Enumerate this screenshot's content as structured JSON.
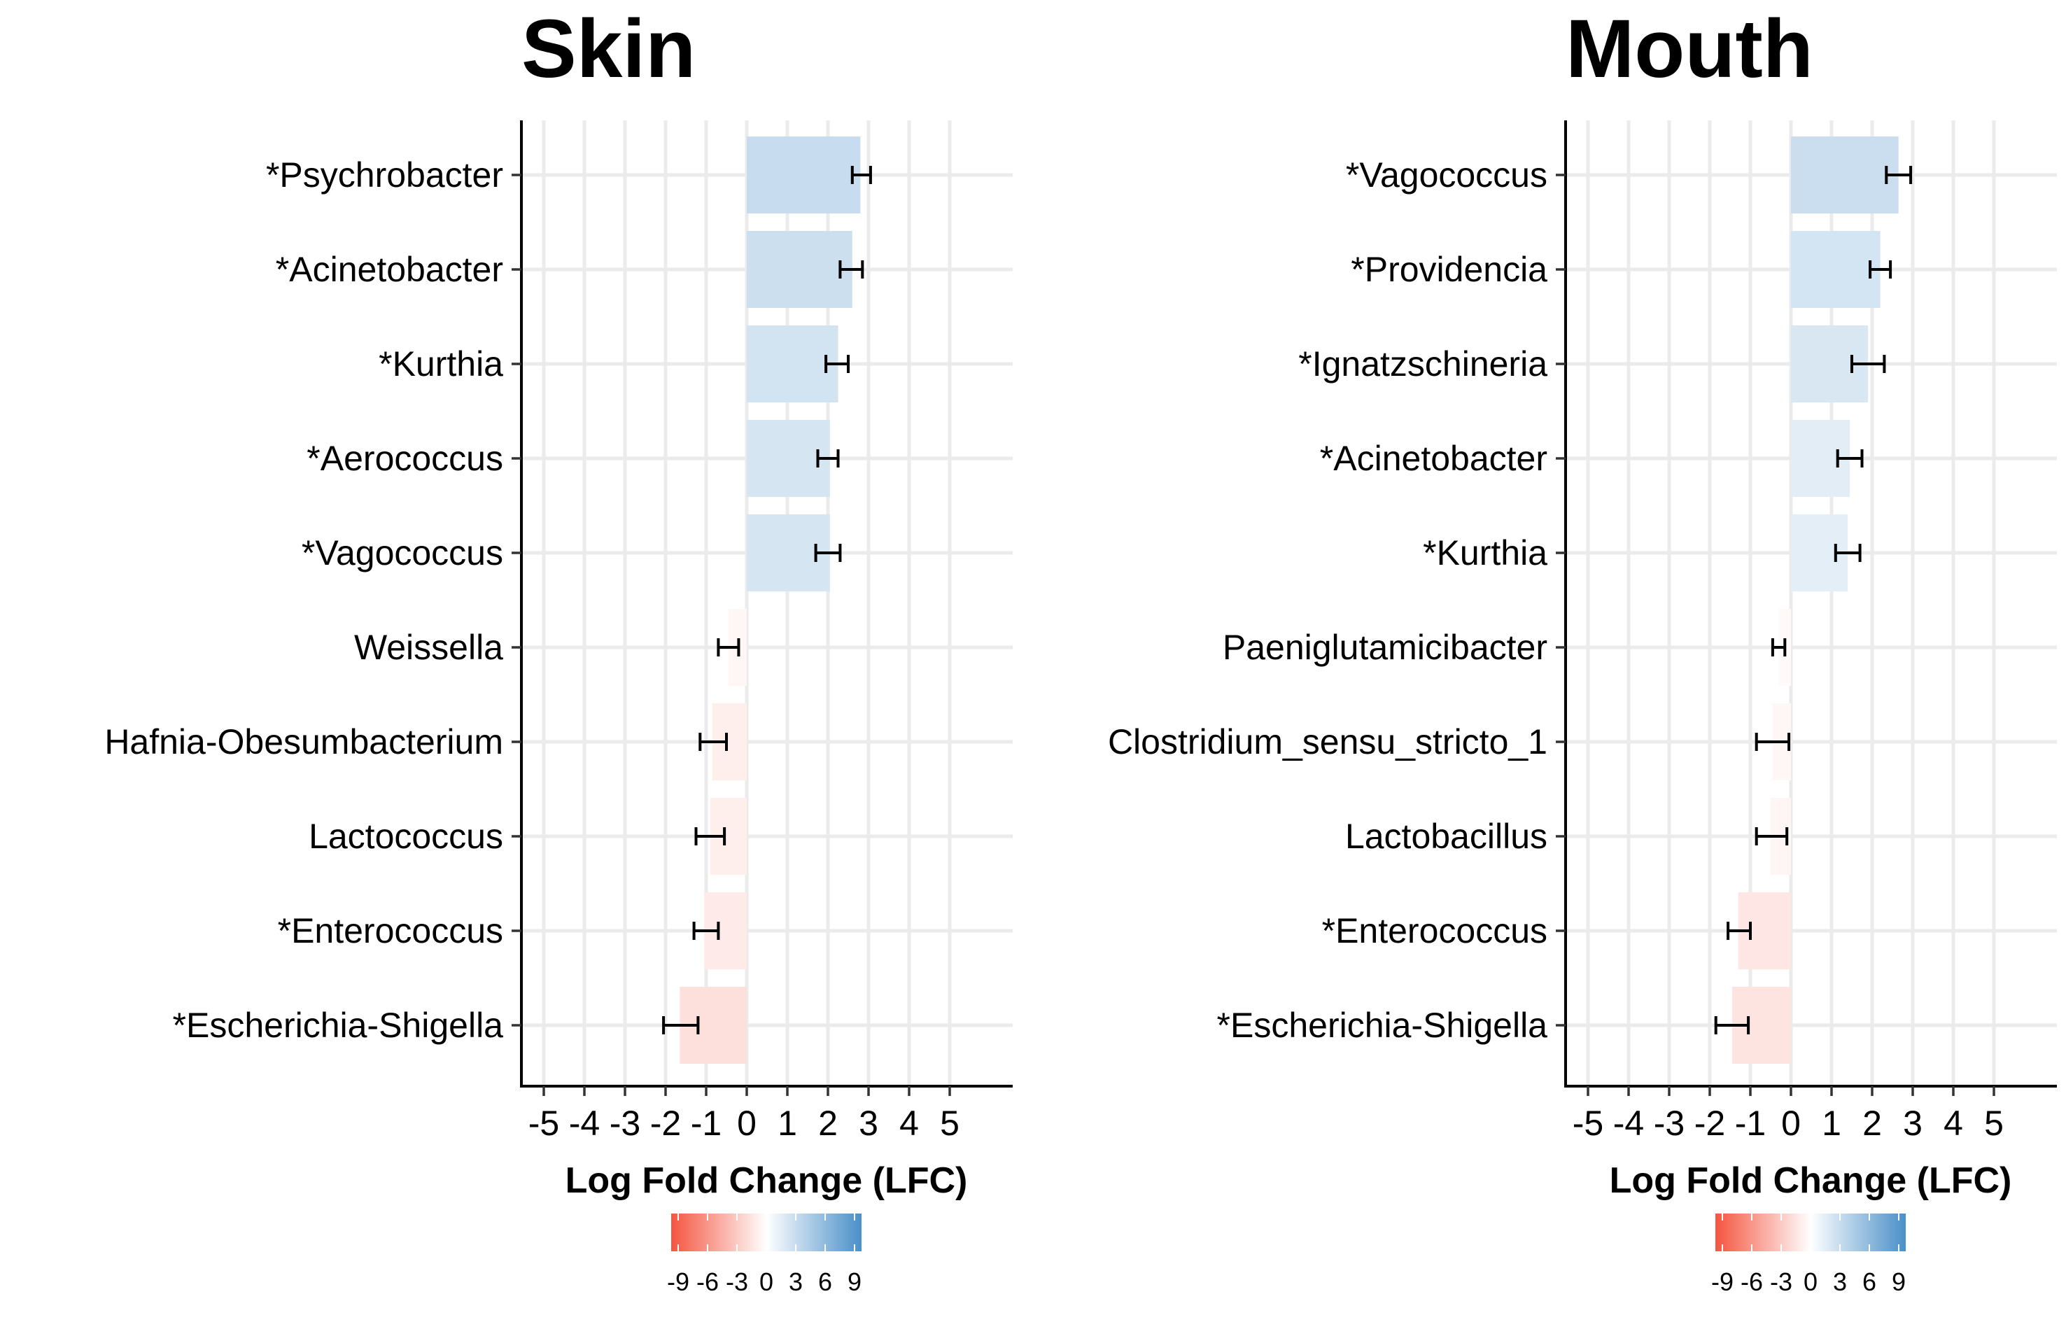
{
  "chart_data": [
    {
      "type": "bar",
      "orientation": "horizontal",
      "title": "Skin",
      "xlabel": "Log Fold Change (LFC)",
      "ylabel": "",
      "xlim": [
        -5.5,
        6.6
      ],
      "xticks": [
        -5,
        -4,
        -3,
        -2,
        -1,
        0,
        1,
        2,
        3,
        4,
        5
      ],
      "grid": true,
      "categories": [
        "*Psychrobacter",
        "*Acinetobacter",
        "*Kurthia",
        "*Aerococcus",
        "*Vagococcus",
        "Weissella",
        "Hafnia-Obesumbacterium",
        "Lactococcus",
        "*Enterococcus",
        "*Escherichia-Shigella"
      ],
      "values": [
        2.8,
        2.6,
        2.25,
        2.05,
        2.05,
        -0.45,
        -0.85,
        -0.9,
        -1.05,
        -1.65
      ],
      "error_low": [
        2.6,
        2.3,
        1.95,
        1.75,
        1.7,
        -0.7,
        -1.15,
        -1.25,
        -1.3,
        -2.05
      ],
      "error_high": [
        3.05,
        2.85,
        2.5,
        2.25,
        2.3,
        -0.2,
        -0.5,
        -0.55,
        -0.7,
        -1.2
      ],
      "color_legend": {
        "title": "",
        "ticks": [
          -9,
          -6,
          -3,
          0,
          3,
          6,
          9
        ],
        "low_color": "#f4553f",
        "mid_color": "#ffffff",
        "high_color": "#4a8fc8"
      }
    },
    {
      "type": "bar",
      "orientation": "horizontal",
      "title": "Mouth",
      "xlabel": "Log Fold Change (LFC)",
      "ylabel": "",
      "xlim": [
        -5.5,
        6.6
      ],
      "xticks": [
        -5,
        -4,
        -3,
        -2,
        -1,
        0,
        1,
        2,
        3,
        4,
        5
      ],
      "grid": true,
      "categories": [
        "*Vagococcus",
        "*Providencia",
        "*Ignatzschineria",
        "*Acinetobacter",
        "*Kurthia",
        "Paeniglutamicibacter",
        "Clostridium_sensu_stricto_1",
        "Lactobacillus",
        "*Enterococcus",
        "*Escherichia-Shigella"
      ],
      "values": [
        2.65,
        2.2,
        1.9,
        1.45,
        1.4,
        -0.3,
        -0.45,
        -0.5,
        -1.3,
        -1.45
      ],
      "error_low": [
        2.35,
        1.95,
        1.5,
        1.15,
        1.1,
        -0.45,
        -0.85,
        -0.85,
        -1.55,
        -1.85
      ],
      "error_high": [
        2.95,
        2.45,
        2.3,
        1.75,
        1.7,
        -0.15,
        -0.05,
        -0.1,
        -1.0,
        -1.05
      ],
      "color_legend": {
        "title": "",
        "ticks": [
          -9,
          -6,
          -3,
          0,
          3,
          6,
          9
        ],
        "low_color": "#f4553f",
        "mid_color": "#ffffff",
        "high_color": "#4a8fc8"
      }
    }
  ]
}
